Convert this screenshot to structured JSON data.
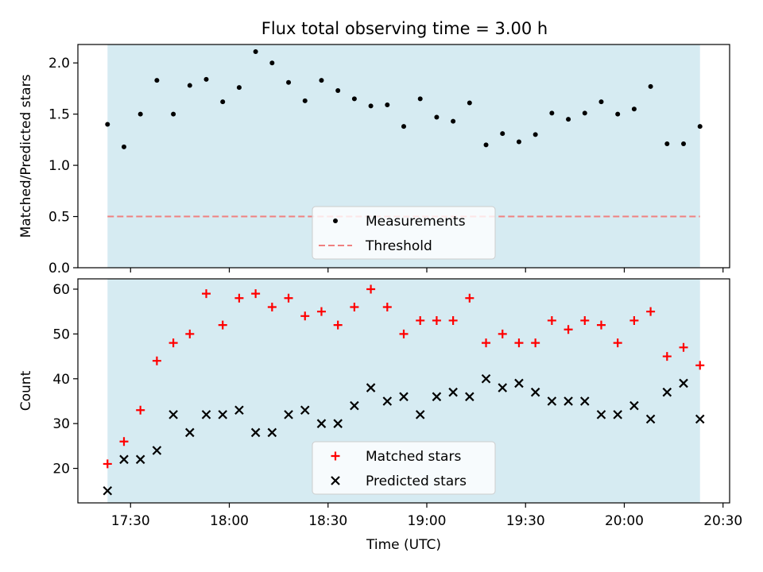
{
  "figure": {
    "title": "Flux total observing time = 3.00 h"
  },
  "chart_data": [
    {
      "type": "scatter",
      "id": "ratio",
      "ylabel": "Matched/Predicted stars",
      "ylim": [
        0,
        2.18
      ],
      "yticks": [
        0.0,
        0.5,
        1.0,
        1.5,
        2.0
      ],
      "ytick_labels": [
        "0.0",
        "0.5",
        "1.0",
        "1.5",
        "2.0"
      ],
      "shaded_span": {
        "start": "17:23",
        "end": "20:23",
        "color": "#add8e6"
      },
      "threshold": {
        "name": "Threshold",
        "value": 0.5,
        "color": "#f08080",
        "style": "dashed"
      },
      "legend": {
        "placement": "lower-center",
        "entries": [
          "Measurements",
          "Threshold"
        ]
      },
      "series": [
        {
          "name": "Measurements",
          "marker": "dot",
          "color": "#000000",
          "x": [
            "17:23",
            "17:28",
            "17:33",
            "17:38",
            "17:43",
            "17:48",
            "17:53",
            "17:58",
            "18:03",
            "18:08",
            "18:13",
            "18:18",
            "18:23",
            "18:28",
            "18:33",
            "18:38",
            "18:43",
            "18:48",
            "18:53",
            "18:58",
            "19:03",
            "19:08",
            "19:13",
            "19:18",
            "19:23",
            "19:28",
            "19:33",
            "19:38",
            "19:43",
            "19:48",
            "19:53",
            "19:58",
            "20:03",
            "20:08",
            "20:13",
            "20:18",
            "20:23"
          ],
          "y": [
            1.4,
            1.18,
            1.5,
            1.83,
            1.5,
            1.78,
            1.84,
            1.62,
            1.76,
            2.11,
            2.0,
            1.81,
            1.63,
            1.83,
            1.73,
            1.65,
            1.58,
            1.59,
            1.38,
            1.65,
            1.47,
            1.43,
            1.61,
            1.2,
            1.31,
            1.23,
            1.3,
            1.51,
            1.45,
            1.51,
            1.62,
            1.5,
            1.55,
            1.77,
            1.21,
            1.21,
            1.38
          ]
        }
      ]
    },
    {
      "type": "scatter",
      "id": "counts",
      "ylabel": "Count",
      "xlabel": "Time (UTC)",
      "ylim": [
        12.3,
        62.3
      ],
      "yticks": [
        20,
        30,
        40,
        50,
        60
      ],
      "ytick_labels": [
        "20",
        "30",
        "40",
        "50",
        "60"
      ],
      "xlim": [
        "17:14",
        "20:32"
      ],
      "xticks": [
        "17:30",
        "18:00",
        "18:30",
        "19:00",
        "19:30",
        "20:00",
        "20:30"
      ],
      "xtick_labels": [
        "17:30",
        "18:00",
        "18:30",
        "19:00",
        "19:30",
        "20:00",
        "20:30"
      ],
      "shaded_span": {
        "start": "17:23",
        "end": "20:23",
        "color": "#add8e6"
      },
      "legend": {
        "placement": "lower-center",
        "entries": [
          "Matched stars",
          "Predicted stars"
        ]
      },
      "series": [
        {
          "name": "Matched stars",
          "marker": "plus",
          "color": "#ff0000",
          "x": [
            "17:23",
            "17:28",
            "17:33",
            "17:38",
            "17:43",
            "17:48",
            "17:53",
            "17:58",
            "18:03",
            "18:08",
            "18:13",
            "18:18",
            "18:23",
            "18:28",
            "18:33",
            "18:38",
            "18:43",
            "18:48",
            "18:53",
            "18:58",
            "19:03",
            "19:08",
            "19:13",
            "19:18",
            "19:23",
            "19:28",
            "19:33",
            "19:38",
            "19:43",
            "19:48",
            "19:53",
            "19:58",
            "20:03",
            "20:08",
            "20:13",
            "20:18",
            "20:23"
          ],
          "y": [
            21,
            26,
            33,
            44,
            48,
            50,
            59,
            52,
            58,
            59,
            56,
            58,
            54,
            55,
            52,
            56,
            60,
            56,
            50,
            53,
            53,
            53,
            58,
            48,
            50,
            48,
            48,
            53,
            51,
            53,
            52,
            48,
            53,
            55,
            45,
            47,
            43
          ]
        },
        {
          "name": "Predicted stars",
          "marker": "x",
          "color": "#000000",
          "x": [
            "17:23",
            "17:28",
            "17:33",
            "17:38",
            "17:43",
            "17:48",
            "17:53",
            "17:58",
            "18:03",
            "18:08",
            "18:13",
            "18:18",
            "18:23",
            "18:28",
            "18:33",
            "18:38",
            "18:43",
            "18:48",
            "18:53",
            "18:58",
            "19:03",
            "19:08",
            "19:13",
            "19:18",
            "19:23",
            "19:28",
            "19:33",
            "19:38",
            "19:43",
            "19:48",
            "19:53",
            "19:58",
            "20:03",
            "20:08",
            "20:13",
            "20:18",
            "20:23"
          ],
          "y": [
            15,
            22,
            22,
            24,
            32,
            28,
            32,
            32,
            33,
            28,
            28,
            32,
            33,
            30,
            30,
            34,
            38,
            35,
            36,
            32,
            36,
            37,
            36,
            40,
            38,
            39,
            37,
            35,
            35,
            35,
            32,
            32,
            34,
            31,
            37,
            39,
            31
          ]
        }
      ]
    }
  ]
}
